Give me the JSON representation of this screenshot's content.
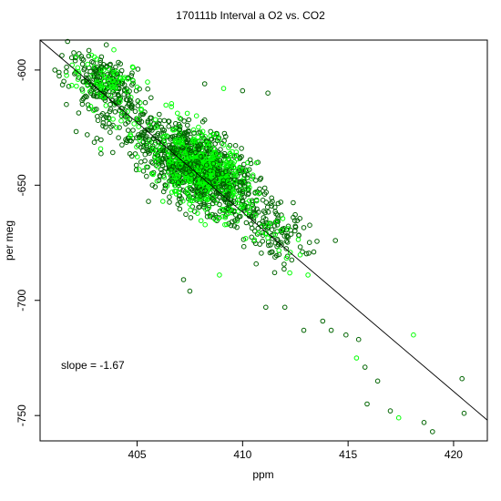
{
  "chart_data": {
    "type": "scatter",
    "title": "170111b   Interval a O2 vs. CO2",
    "xlabel": "ppm",
    "ylabel": "per meg",
    "xlim": [
      400.4,
      421.6
    ],
    "ylim": [
      -761,
      -587
    ],
    "x_ticks": [
      405,
      410,
      415,
      420
    ],
    "y_ticks": [
      -600,
      -650,
      -700,
      -750
    ],
    "annotation": "slope =  -1.67",
    "fit_line": {
      "slope": -1.67,
      "start": [
        400.4,
        -587
      ],
      "end": [
        421.6,
        -752
      ]
    },
    "colors": {
      "dark_series": "#006400",
      "bright_series": "#00ff00",
      "axis": "#000000",
      "fit_line": "#000000"
    },
    "point_clusters": [
      {
        "description": "dense core",
        "center": [
          408.0,
          -643
        ],
        "spread": [
          1.1,
          8
        ],
        "count_dark": 700,
        "count_bright": 380
      },
      {
        "description": "upper-left cluster",
        "center": [
          403.6,
          -604
        ],
        "spread": [
          0.9,
          5
        ],
        "count_dark": 160,
        "count_bright": 70
      },
      {
        "description": "diagonal band",
        "from": [
          402.5,
          -610
        ],
        "to": [
          412.5,
          -675
        ],
        "width": 7,
        "count_dark": 500,
        "count_bright": 120
      }
    ],
    "outliers": [
      {
        "x": 411.1,
        "y": -703,
        "c": "dark"
      },
      {
        "x": 412.0,
        "y": -703,
        "c": "dark"
      },
      {
        "x": 412.9,
        "y": -713,
        "c": "dark"
      },
      {
        "x": 413.8,
        "y": -709,
        "c": "dark"
      },
      {
        "x": 414.2,
        "y": -713,
        "c": "dark"
      },
      {
        "x": 414.9,
        "y": -715,
        "c": "dark"
      },
      {
        "x": 415.5,
        "y": -717,
        "c": "dark"
      },
      {
        "x": 415.4,
        "y": -725,
        "c": "bright"
      },
      {
        "x": 415.8,
        "y": -729,
        "c": "dark"
      },
      {
        "x": 416.4,
        "y": -735,
        "c": "dark"
      },
      {
        "x": 415.9,
        "y": -745,
        "c": "dark"
      },
      {
        "x": 417.0,
        "y": -748,
        "c": "dark"
      },
      {
        "x": 417.4,
        "y": -751,
        "c": "bright"
      },
      {
        "x": 418.1,
        "y": -715,
        "c": "bright"
      },
      {
        "x": 418.6,
        "y": -753,
        "c": "dark"
      },
      {
        "x": 419.0,
        "y": -757,
        "c": "dark"
      },
      {
        "x": 420.4,
        "y": -734,
        "c": "dark"
      },
      {
        "x": 420.5,
        "y": -749,
        "c": "dark"
      },
      {
        "x": 407.2,
        "y": -691,
        "c": "dark"
      },
      {
        "x": 407.5,
        "y": -696,
        "c": "dark"
      },
      {
        "x": 408.9,
        "y": -689,
        "c": "bright"
      },
      {
        "x": 411.4,
        "y": -679,
        "c": "dark"
      },
      {
        "x": 413.1,
        "y": -689,
        "c": "bright"
      },
      {
        "x": 414.4,
        "y": -674,
        "c": "dark"
      },
      {
        "x": 412.4,
        "y": -664,
        "c": "dark"
      },
      {
        "x": 411.2,
        "y": -610,
        "c": "dark"
      },
      {
        "x": 410.0,
        "y": -609,
        "c": "dark"
      },
      {
        "x": 408.2,
        "y": -606,
        "c": "dark"
      },
      {
        "x": 409.1,
        "y": -608,
        "c": "bright"
      },
      {
        "x": 401.1,
        "y": -600,
        "c": "dark"
      },
      {
        "x": 401.3,
        "y": -601,
        "c": "dark"
      }
    ]
  }
}
